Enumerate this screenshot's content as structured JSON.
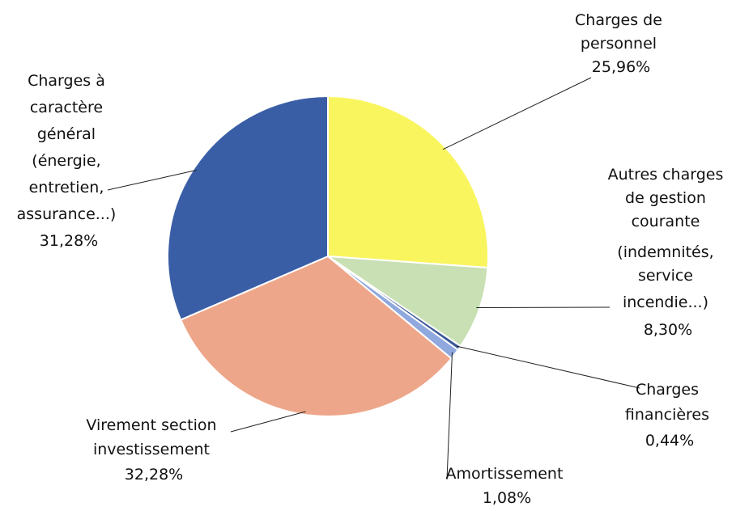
{
  "chart_data": {
    "type": "pie",
    "slices": [
      {
        "key": "personnel",
        "label_lines": [
          "Charges de",
          "personnel"
        ],
        "value_label": "25,96%",
        "value": 25.96,
        "color": "#f9f55f"
      },
      {
        "key": "autres",
        "label_lines": [
          "Autres charges",
          "de gestion",
          "courante",
          "(indemnités,",
          "service",
          "incendie...)"
        ],
        "value_label": "8,30%",
        "value": 8.3,
        "color": "#c8e0b4"
      },
      {
        "key": "financieres",
        "label_lines": [
          "Charges",
          "financières"
        ],
        "value_label": "0,44%",
        "value": 0.44,
        "color": "#3c5a99"
      },
      {
        "key": "amortissement",
        "label_lines": [
          "Amortissement"
        ],
        "value_label": "1,08%",
        "value": 1.08,
        "color": "#8fa9de"
      },
      {
        "key": "virement",
        "label_lines": [
          "Virement section",
          "investissement"
        ],
        "value_label": "32,28%",
        "value": 32.28,
        "color": "#eea68a"
      },
      {
        "key": "general",
        "label_lines": [
          "Charges à",
          "caractère",
          "général",
          "(énergie,",
          "entretien,",
          "assurance...)"
        ],
        "value_label": "31,28%",
        "value": 31.28,
        "color": "#3a5ea6"
      }
    ]
  }
}
